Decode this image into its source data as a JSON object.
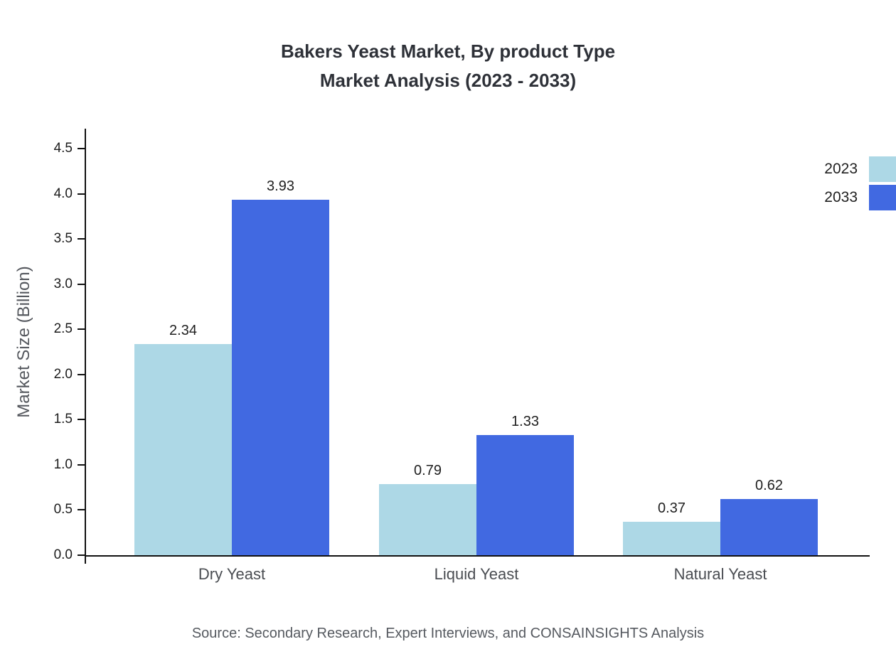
{
  "title": {
    "line1": "Bakers Yeast Market, By product Type",
    "line2": "Market Analysis (2023 - 2033)"
  },
  "source": "Source: Secondary Research, Expert Interviews, and CONSAINSIGHTS Analysis",
  "chart_data": {
    "type": "bar",
    "categories": [
      "Dry Yeast",
      "Liquid Yeast",
      "Natural Yeast"
    ],
    "series": [
      {
        "name": "2023",
        "color": "#ADD8E6",
        "values": [
          2.34,
          0.79,
          0.37
        ]
      },
      {
        "name": "2033",
        "color": "#4169E1",
        "values": [
          3.93,
          1.33,
          0.62
        ]
      }
    ],
    "title": "Bakers Yeast Market, By product Type Market Analysis (2023 - 2033)",
    "xlabel": "",
    "ylabel": "Market Size (Billion)",
    "ylim": [
      0,
      4.75
    ],
    "yticks": [
      0.0,
      0.5,
      1.0,
      1.5,
      2.0,
      2.5,
      3.0,
      3.5,
      4.0,
      4.5
    ],
    "grid": false,
    "legend_position": "top-right",
    "value_labels": true
  }
}
